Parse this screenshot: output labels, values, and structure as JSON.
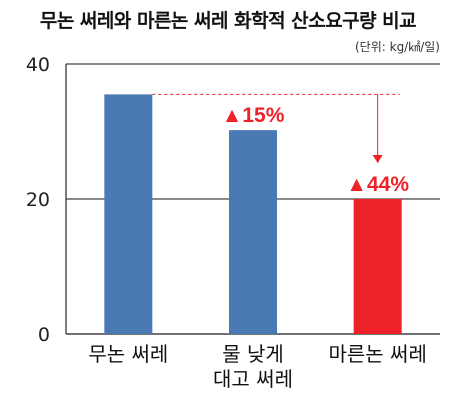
{
  "header": {
    "title": "무논 써레와 마른논 써레 화학적 산소요구량 비교",
    "unit": "(단위: kg/㎢/일)"
  },
  "chart_data": {
    "type": "bar",
    "title": "무논 써레와 마른논 써레 화학적 산소요구량 비교",
    "unit": "(단위: kg/㎢/일)",
    "categories": [
      [
        "무논 써레"
      ],
      [
        "물 낮게",
        "대고 써레"
      ],
      [
        "마른논 써레"
      ]
    ],
    "values": [
      35.5,
      30.2,
      20
    ],
    "bar_colors": [
      "#4a7ab4",
      "#4a7ab4",
      "#ee2229"
    ],
    "annotations": [
      {
        "index": 1,
        "text": "▲15%"
      },
      {
        "index": 2,
        "text": "▲44%"
      }
    ],
    "reference_line": {
      "from_index": 0,
      "value": 35.5,
      "color": "#ee2229",
      "style": "dashed",
      "arrow_to_index": 2
    },
    "ylim": [
      0,
      40
    ],
    "yticks": [
      0,
      20,
      40
    ],
    "gridlines": [
      20,
      40
    ],
    "xlabel": "",
    "ylabel": ""
  }
}
